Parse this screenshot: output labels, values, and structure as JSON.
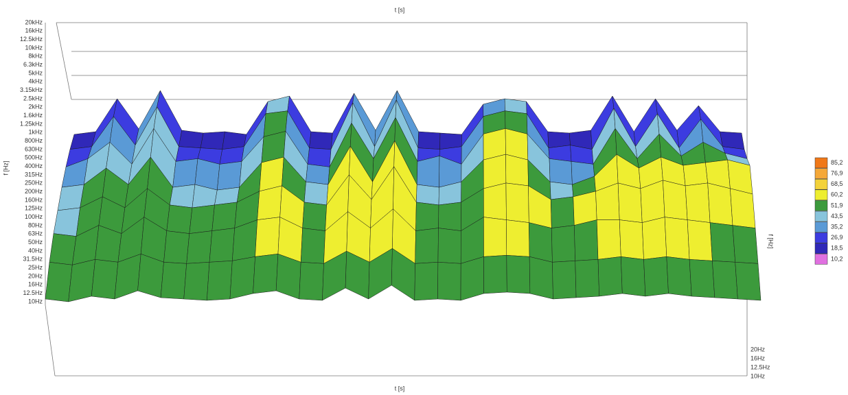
{
  "chart_data": {
    "type": "surface",
    "title_top": "t [s]",
    "title_bottom": "t [s]",
    "y_title_left": "f [Hz]",
    "y_title_right": "f [Hz]",
    "frequency_labels": [
      "20kHz",
      "16kHz",
      "12.5kHz",
      "10kHz",
      "8kHz",
      "6.3kHz",
      "5kHz",
      "4kHz",
      "3.15kHz",
      "2.5kHz",
      "2kHz",
      "1.6kHz",
      "1.25kHz",
      "1kHz",
      "800Hz",
      "630Hz",
      "500Hz",
      "400Hz",
      "315Hz",
      "250Hz",
      "200Hz",
      "160Hz",
      "125Hz",
      "100Hz",
      "80Hz",
      "63Hz",
      "50Hz",
      "40Hz",
      "31.5Hz",
      "25Hz",
      "20Hz",
      "16Hz",
      "12.5Hz",
      "10Hz"
    ],
    "right_frequency_labels": [
      "20Hz",
      "16Hz",
      "12.5Hz",
      "10Hz"
    ],
    "z": [
      [
        12,
        14,
        38,
        16,
        44,
        15,
        13,
        14,
        12,
        36,
        40,
        14,
        13,
        42,
        15,
        44,
        14,
        13,
        12,
        34,
        38,
        36,
        14,
        13,
        15,
        40,
        14,
        38,
        15,
        33,
        14,
        13
      ],
      [
        24,
        26,
        48,
        27,
        55,
        26,
        25,
        24,
        26,
        50,
        52,
        25,
        24,
        58,
        26,
        60,
        25,
        24,
        26,
        48,
        52,
        50,
        25,
        27,
        24,
        54,
        26,
        50,
        25,
        46,
        26,
        24
      ],
      [
        34,
        40,
        52,
        36,
        62,
        38,
        40,
        36,
        38,
        56,
        60,
        36,
        34,
        66,
        40,
        70,
        38,
        42,
        36,
        58,
        62,
        58,
        40,
        38,
        36,
        62,
        40,
        58,
        42,
        52,
        44,
        40
      ],
      [
        42,
        44,
        56,
        44,
        64,
        42,
        44,
        40,
        42,
        60,
        64,
        46,
        44,
        72,
        46,
        76,
        44,
        42,
        46,
        62,
        66,
        62,
        46,
        44,
        50,
        66,
        56,
        64,
        58,
        60,
        62,
        58
      ],
      [
        48,
        50,
        58,
        50,
        64,
        52,
        50,
        52,
        54,
        62,
        66,
        54,
        52,
        74,
        56,
        80,
        54,
        52,
        54,
        64,
        68,
        66,
        56,
        58,
        62,
        68,
        64,
        70,
        66,
        68,
        64,
        60
      ],
      [
        54,
        52,
        60,
        54,
        66,
        56,
        54,
        56,
        58,
        64,
        66,
        58,
        56,
        70,
        58,
        72,
        56,
        58,
        56,
        66,
        64,
        62,
        58,
        60,
        64,
        64,
        62,
        66,
        64,
        62,
        60,
        58
      ],
      [
        56,
        54,
        58,
        56,
        62,
        56,
        55,
        56,
        57,
        60,
        62,
        56,
        55,
        64,
        56,
        66,
        55,
        56,
        55,
        60,
        61,
        60,
        56,
        57,
        58,
        60,
        58,
        60,
        58,
        57,
        56,
        55
      ],
      [
        52,
        50,
        54,
        52,
        58,
        53,
        52,
        51,
        52,
        56,
        58,
        52,
        51,
        60,
        52,
        62,
        51,
        52,
        51,
        56,
        57,
        56,
        52,
        53,
        54,
        56,
        54,
        56,
        54,
        53,
        52,
        51
      ]
    ],
    "colorscale": [
      {
        "value": 85.2,
        "label": "85,2",
        "color": "#f07818"
      },
      {
        "value": 76.9,
        "label": "76,9",
        "color": "#f5a838"
      },
      {
        "value": 68.5,
        "label": "68,5",
        "color": "#f3d23a"
      },
      {
        "value": 60.2,
        "label": "60,2",
        "color": "#eeee30"
      },
      {
        "value": 51.9,
        "label": "51,9",
        "color": "#3c9a3c"
      },
      {
        "value": 43.5,
        "label": "43,5",
        "color": "#88c4dc"
      },
      {
        "value": 35.2,
        "label": "35,2",
        "color": "#5a9ad6"
      },
      {
        "value": 26.9,
        "label": "26,9",
        "color": "#3c3ce0"
      },
      {
        "value": 18.5,
        "label": "18,5",
        "color": "#3028b8"
      },
      {
        "value": 10.2,
        "label": "10,2",
        "color": "#e070e0"
      }
    ]
  }
}
